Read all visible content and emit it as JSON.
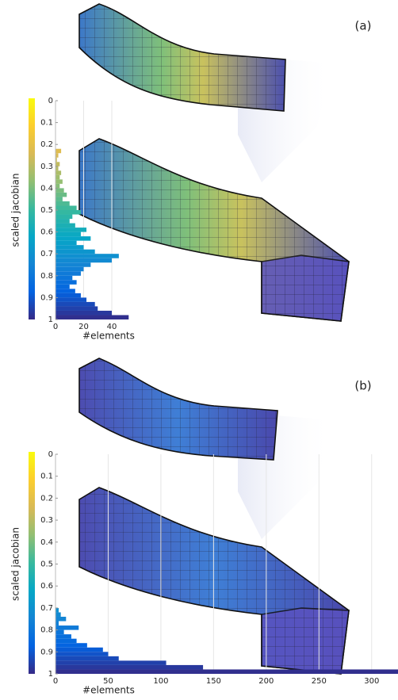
{
  "chart_data": [
    {
      "type": "histogram",
      "orientation": "horizontal",
      "annotation": "(a)",
      "ylabel": "scaled jacobian",
      "xlabel": "#elements",
      "ylim": [
        0,
        1
      ],
      "yreversed": true,
      "yticks": [
        0,
        0.1,
        0.2,
        0.3,
        0.4,
        0.5,
        0.6,
        0.7,
        0.8,
        0.9,
        1
      ],
      "xlim": [
        0,
        60
      ],
      "xticks": [
        0,
        20,
        40
      ],
      "grid": true,
      "colormap": [
        "#f9fb0e",
        "#fcce2e",
        "#d9ba56",
        "#92bf73",
        "#38b99e",
        "#06a7c6",
        "#1485d4",
        "#0363e1",
        "#352a87"
      ],
      "bins": [
        0.22,
        0.24,
        0.26,
        0.28,
        0.3,
        0.32,
        0.34,
        0.36,
        0.38,
        0.4,
        0.42,
        0.44,
        0.46,
        0.48,
        0.5,
        0.52,
        0.54,
        0.56,
        0.58,
        0.6,
        0.62,
        0.64,
        0.66,
        0.68,
        0.7,
        0.72,
        0.74,
        0.76,
        0.78,
        0.8,
        0.82,
        0.84,
        0.86,
        0.88,
        0.9,
        0.92,
        0.94,
        0.96,
        0.98,
        1.0
      ],
      "counts": [
        4,
        2,
        1,
        3,
        2,
        4,
        3,
        5,
        3,
        6,
        8,
        5,
        10,
        15,
        18,
        12,
        10,
        14,
        22,
        18,
        25,
        15,
        20,
        28,
        45,
        40,
        25,
        20,
        18,
        12,
        15,
        10,
        14,
        18,
        22,
        28,
        30,
        40,
        52
      ]
    },
    {
      "type": "histogram",
      "orientation": "horizontal",
      "annotation": "(b)",
      "ylabel": "scaled jacobian",
      "xlabel": "#elements",
      "ylim": [
        0,
        1
      ],
      "yreversed": true,
      "yticks": [
        0,
        0.1,
        0.2,
        0.3,
        0.4,
        0.5,
        0.6,
        0.7,
        0.8,
        0.9,
        1
      ],
      "xlim": [
        0,
        325
      ],
      "xticks": [
        0,
        50,
        100,
        150,
        200,
        250,
        300
      ],
      "grid": true,
      "colormap": [
        "#f9fb0e",
        "#fcce2e",
        "#d9ba56",
        "#92bf73",
        "#38b99e",
        "#06a7c6",
        "#1485d4",
        "#0363e1",
        "#352a87"
      ],
      "bins": [
        0.7,
        0.72,
        0.74,
        0.76,
        0.78,
        0.8,
        0.82,
        0.84,
        0.86,
        0.88,
        0.9,
        0.92,
        0.94,
        0.96,
        0.98,
        1.0
      ],
      "counts": [
        3,
        5,
        10,
        3,
        22,
        8,
        15,
        20,
        30,
        45,
        50,
        60,
        105,
        140,
        325
      ]
    }
  ]
}
